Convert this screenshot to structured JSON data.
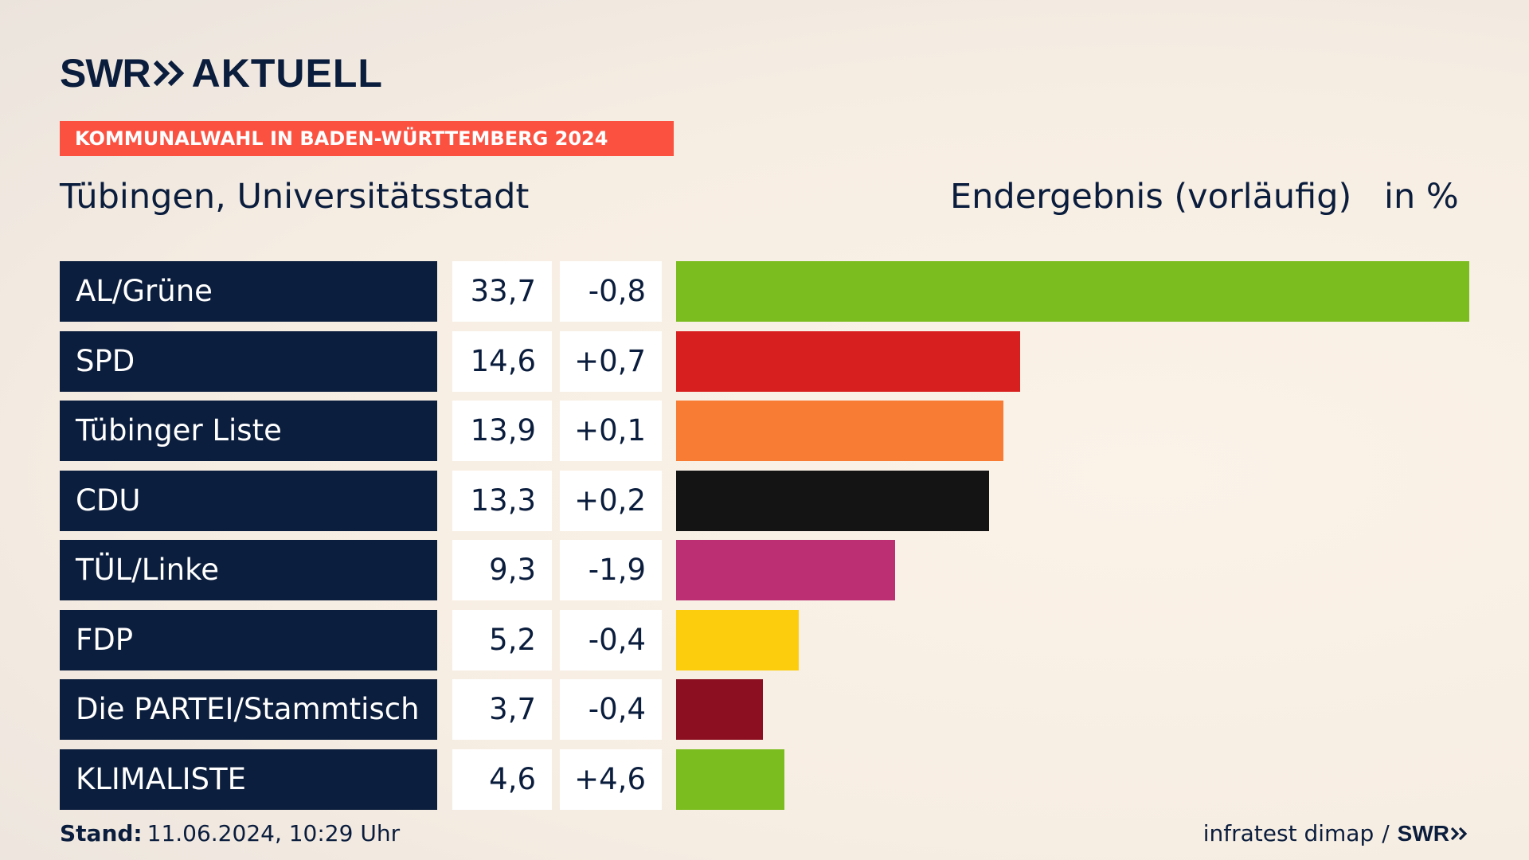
{
  "header": {
    "brand": "SWR",
    "brand_suffix": "AKTUELL",
    "election": "KOMMUNALWAHL IN BADEN-WÜRTTEMBERG 2024",
    "place": "Tübingen, Universitätsstadt",
    "status": "Endergebnis (vorläufig)",
    "unit": "in %"
  },
  "colors": {
    "navy": "#0c1e3d",
    "badge": "#fb5141"
  },
  "chart_data": {
    "type": "bar",
    "orientation": "horizontal",
    "title": "Tübingen, Universitätsstadt",
    "subtitle": "Endergebnis (vorläufig)",
    "ylabel": "in %",
    "xlim": [
      0,
      33.7
    ],
    "categories": [
      "AL/Grüne",
      "SPD",
      "Tübinger Liste",
      "CDU",
      "TÜL/Linke",
      "FDP",
      "Die PARTEI/Stammtisch",
      "KLIMALISTE"
    ],
    "values": [
      33.7,
      14.6,
      13.9,
      13.3,
      9.3,
      5.2,
      3.7,
      4.6
    ],
    "rows": [
      {
        "party": "AL/Grüne",
        "value": 33.7,
        "value_label": "33,7",
        "diff_label": "-0,8",
        "color": "#7bbd1e"
      },
      {
        "party": "SPD",
        "value": 14.6,
        "value_label": "14,6",
        "diff_label": "+0,7",
        "color": "#d81f1f"
      },
      {
        "party": "Tübinger Liste",
        "value": 13.9,
        "value_label": "13,9",
        "diff_label": "+0,1",
        "color": "#f87c33"
      },
      {
        "party": "CDU",
        "value": 13.3,
        "value_label": "13,3",
        "diff_label": "+0,2",
        "color": "#141414"
      },
      {
        "party": "TÜL/Linke",
        "value": 9.3,
        "value_label": "9,3",
        "diff_label": "-1,9",
        "color": "#bc2f73"
      },
      {
        "party": "FDP",
        "value": 5.2,
        "value_label": "5,2",
        "diff_label": "-0,4",
        "color": "#fccd0c"
      },
      {
        "party": "Die PARTEI/Stammtisch",
        "value": 3.7,
        "value_label": "3,7",
        "diff_label": "-0,4",
        "color": "#8b0f20"
      },
      {
        "party": "KLIMALISTE",
        "value": 4.6,
        "value_label": "4,6",
        "diff_label": "+4,6",
        "color": "#7bbd1e"
      }
    ]
  },
  "footer": {
    "stand_label": "Stand:",
    "stand_value": "11.06.2024, 10:29 Uhr",
    "source": "infratest dimap",
    "separator": "/",
    "source_brand": "SWR"
  }
}
